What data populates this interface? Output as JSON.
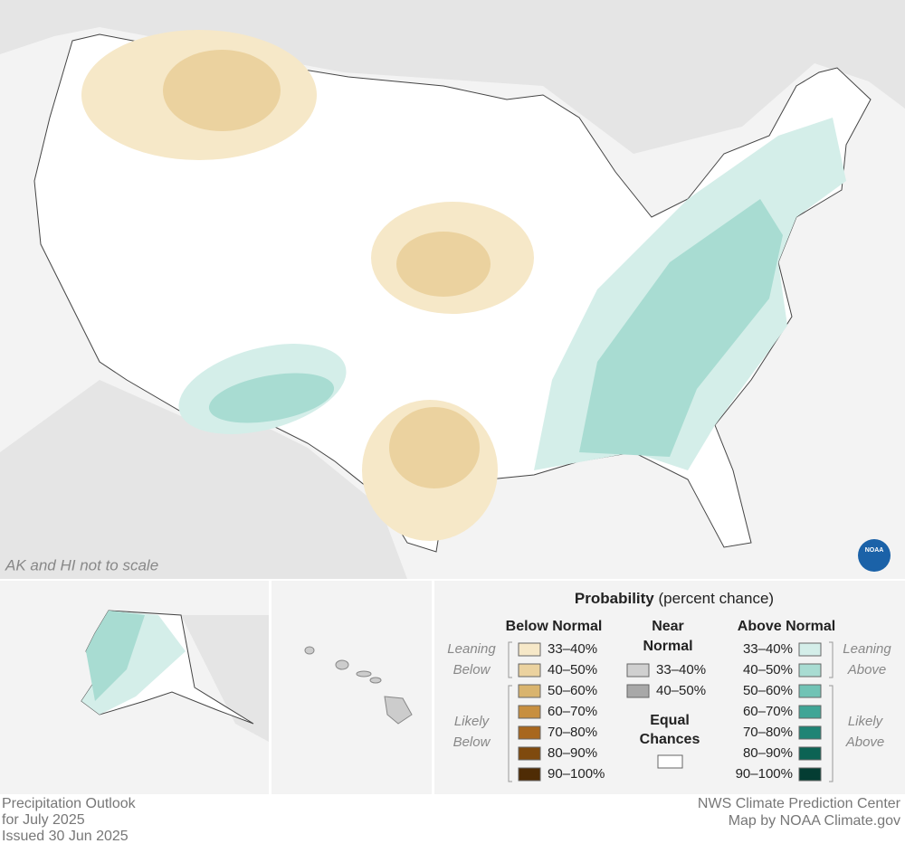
{
  "map": {
    "note": "AK and HI not to scale",
    "logo": "NOAA"
  },
  "legend": {
    "title": "Probability",
    "subtitle": "(percent chance)",
    "below": {
      "heading": "Below Normal",
      "leaning": [
        "Leaning",
        "Below"
      ],
      "likely": [
        "Likely",
        "Below"
      ],
      "items": [
        {
          "label": "33–40%",
          "color": "#f6e8c8"
        },
        {
          "label": "40–50%",
          "color": "#ebd29f"
        },
        {
          "label": "50–60%",
          "color": "#d9b46e"
        },
        {
          "label": "60–70%",
          "color": "#c78f3f"
        },
        {
          "label": "70–80%",
          "color": "#a8671e"
        },
        {
          "label": "80–90%",
          "color": "#7f4a0e"
        },
        {
          "label": "90–100%",
          "color": "#4f2c05"
        }
      ]
    },
    "near": {
      "heading": [
        "Near",
        "Normal"
      ],
      "items": [
        {
          "label": "33–40%",
          "color": "#d0d0d0"
        },
        {
          "label": "40–50%",
          "color": "#a8a8a8"
        }
      ]
    },
    "equal": {
      "heading": [
        "Equal",
        "Chances"
      ],
      "color": "#ffffff"
    },
    "above": {
      "heading": "Above Normal",
      "leaning": [
        "Leaning",
        "Above"
      ],
      "likely": [
        "Likely",
        "Above"
      ],
      "items": [
        {
          "label": "33–40%",
          "color": "#d4eee9"
        },
        {
          "label": "40–50%",
          "color": "#a8dcd2"
        },
        {
          "label": "50–60%",
          "color": "#71c3b5"
        },
        {
          "label": "60–70%",
          "color": "#3fa596"
        },
        {
          "label": "70–80%",
          "color": "#1f8475"
        },
        {
          "label": "80–90%",
          "color": "#0c6354"
        },
        {
          "label": "90–100%",
          "color": "#043d33"
        }
      ]
    }
  },
  "footer": {
    "left": [
      "Precipitation Outlook",
      "for July 2025",
      "Issued 30 Jun 2025"
    ],
    "right": [
      "NWS Climate Prediction Center",
      "Map by NOAA Climate.gov"
    ]
  }
}
